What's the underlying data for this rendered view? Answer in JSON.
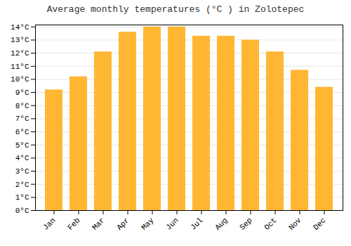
{
  "chart_data": {
    "type": "bar",
    "title": "Average monthly temperatures (°C ) in Zolotepec",
    "categories": [
      "Jan",
      "Feb",
      "Mar",
      "Apr",
      "May",
      "Jun",
      "Jul",
      "Aug",
      "Sep",
      "Oct",
      "Nov",
      "Dec"
    ],
    "values": [
      9.2,
      10.2,
      12.1,
      13.6,
      14.0,
      14.0,
      13.3,
      13.3,
      13.0,
      12.1,
      10.7,
      9.4
    ],
    "color": "#FFB733",
    "ylim": [
      0,
      14.15
    ],
    "yticks": [
      {
        "value": 0,
        "label": "0°C"
      },
      {
        "value": 1,
        "label": "1°C"
      },
      {
        "value": 2,
        "label": "2°C"
      },
      {
        "value": 3,
        "label": "3°C"
      },
      {
        "value": 4,
        "label": "4°C"
      },
      {
        "value": 5,
        "label": "5°C"
      },
      {
        "value": 6,
        "label": "6°C"
      },
      {
        "value": 7,
        "label": "7°C"
      },
      {
        "value": 8,
        "label": "8°C"
      },
      {
        "value": 9,
        "label": "9°C"
      },
      {
        "value": 10,
        "label": "10°C"
      },
      {
        "value": 11,
        "label": "11°C"
      },
      {
        "value": 12,
        "label": "12°C"
      },
      {
        "value": 13,
        "label": "13°C"
      },
      {
        "value": 14,
        "label": "14°C"
      }
    ],
    "grid": true
  }
}
